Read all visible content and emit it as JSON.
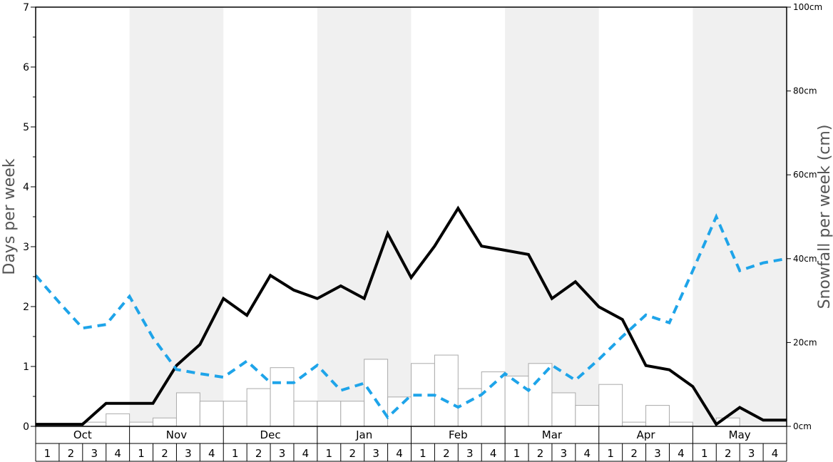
{
  "chart_data": {
    "type": "bar+line",
    "left_axis": {
      "label": "Days per week",
      "ylim": [
        0,
        7
      ],
      "ticks": [
        "0",
        "1",
        "2",
        "3",
        "4",
        "5",
        "6",
        "7"
      ]
    },
    "right_axis": {
      "label": "Snowfall per week (cm)",
      "ylim": [
        0,
        100
      ],
      "ticks": [
        "0cm",
        "20cm",
        "40cm",
        "60cm",
        "80cm",
        "100cm"
      ]
    },
    "months": [
      "Oct",
      "Nov",
      "Dec",
      "Jan",
      "Feb",
      "Mar",
      "Apr",
      "May"
    ],
    "weeks": [
      "1",
      "2",
      "3",
      "4"
    ],
    "shaded_months": [
      "Nov",
      "Jan",
      "Mar",
      "May"
    ],
    "colors": {
      "bars_fill": "#ffffff",
      "bars_stroke": "#aaaaaa",
      "snowfall_line": "#000000",
      "dashed_line": "#1ea4e9",
      "shade": "#f0f0f0"
    },
    "series": [
      {
        "axis": "right",
        "style": "bars",
        "values": [
          0,
          0,
          1,
          3,
          1,
          2,
          8,
          6,
          6,
          9,
          14,
          6,
          6,
          6,
          16,
          7,
          15,
          17,
          9,
          13,
          12,
          15,
          8,
          5,
          10,
          1,
          5,
          1,
          0,
          2,
          0,
          0
        ]
      },
      {
        "axis": "right",
        "style": "solid-line",
        "values": [
          0.5,
          0.5,
          0.5,
          5.5,
          5.5,
          5.5,
          14.5,
          19.5,
          30.5,
          26.5,
          36,
          32.5,
          30.5,
          33.5,
          30.5,
          46,
          35.5,
          43,
          52,
          43,
          42,
          41,
          30.5,
          34.5,
          28.5,
          25.5,
          14.5,
          13.5,
          9.5,
          0.5,
          4.5,
          1.5,
          1.5
        ]
      },
      {
        "axis": "left",
        "style": "dashed-line",
        "values": [
          2.52,
          2.07,
          1.64,
          1.7,
          2.17,
          1.48,
          0.95,
          0.88,
          0.82,
          1.09,
          0.73,
          0.73,
          1.02,
          0.6,
          0.72,
          0.15,
          0.52,
          0.52,
          0.32,
          0.53,
          0.88,
          0.6,
          1.02,
          0.77,
          1.12,
          1.5,
          1.86,
          1.73,
          2.6,
          3.5,
          2.6,
          2.73,
          2.8
        ]
      }
    ]
  }
}
